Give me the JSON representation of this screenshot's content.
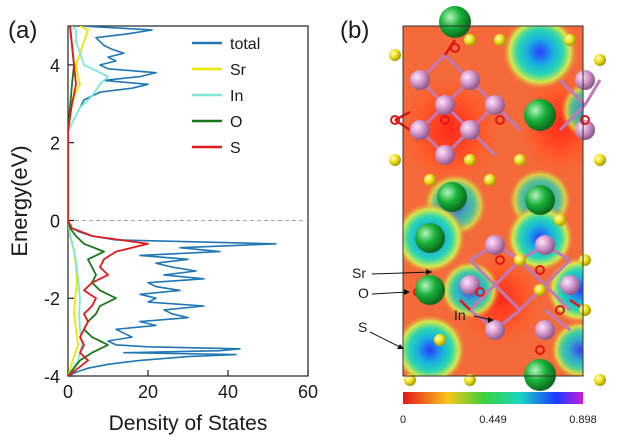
{
  "panels": {
    "a": {
      "label": "(a)"
    },
    "b": {
      "label": "(b)",
      "atom_labels": {
        "sr": "Sr",
        "o": "O",
        "in": "In",
        "s": "S"
      },
      "colorbar": {
        "ticks": [
          "0",
          "0.449",
          "0.898"
        ],
        "range": [
          0,
          0.898
        ]
      },
      "colors": {
        "sr_atom": "#19b23a",
        "in_atom": "#d69ad0",
        "s_atom": "#f2e21a",
        "o_atom": "#e01616",
        "map_background": "#f46a3a"
      }
    }
  },
  "chart_data": {
    "type": "line",
    "orientation": "horizontal-density",
    "xlabel": "Density of States",
    "ylabel": "Energy(eV)",
    "xlim": [
      0,
      60
    ],
    "ylim": [
      -4,
      5
    ],
    "xticks": [
      "0",
      "20",
      "40",
      "60"
    ],
    "yticks": [
      "-4",
      "-2",
      "0",
      "2",
      "4"
    ],
    "fermi_level": 0,
    "legend_placement": "top-right",
    "series": [
      {
        "name": "total",
        "color": "#1f77b4",
        "energy": [
          -4.0,
          -3.9,
          -3.8,
          -3.7,
          -3.6,
          -3.5,
          -3.45,
          -3.4,
          -3.35,
          -3.3,
          -3.25,
          -3.2,
          -3.1,
          -3.0,
          -2.9,
          -2.8,
          -2.7,
          -2.6,
          -2.5,
          -2.4,
          -2.3,
          -2.2,
          -2.1,
          -2.0,
          -1.9,
          -1.8,
          -1.7,
          -1.6,
          -1.5,
          -1.4,
          -1.3,
          -1.2,
          -1.1,
          -1.0,
          -0.9,
          -0.8,
          -0.7,
          -0.6,
          -0.5,
          -0.4,
          -0.3,
          -0.2,
          -0.1,
          0.0,
          2.3,
          2.5,
          2.7,
          2.9,
          3.1,
          3.3,
          3.4,
          3.5,
          3.6,
          3.7,
          3.8,
          3.9,
          4.0,
          4.1,
          4.2,
          4.3,
          4.4,
          4.5,
          4.6,
          4.7,
          4.8,
          4.9,
          5.0
        ],
        "values": [
          0,
          2,
          5,
          10,
          18,
          30,
          42,
          14,
          38,
          43,
          20,
          12,
          10,
          16,
          14,
          12,
          22,
          18,
          30,
          26,
          24,
          34,
          20,
          22,
          18,
          28,
          22,
          20,
          34,
          24,
          32,
          26,
          22,
          30,
          18,
          38,
          28,
          52,
          12,
          6,
          3,
          1,
          0.4,
          0,
          0,
          1,
          2,
          3,
          4,
          8,
          16,
          20,
          9,
          18,
          22,
          10,
          8,
          12,
          10,
          14,
          11,
          9,
          8,
          7,
          15,
          21,
          3
        ]
      },
      {
        "name": "Sr",
        "color": "#e8e800",
        "energy": [
          -4.0,
          -3.6,
          -3.2,
          -2.8,
          -2.4,
          -2.0,
          -1.6,
          -1.2,
          -0.8,
          -0.4,
          0.0,
          2.3,
          3.0,
          3.3,
          3.5,
          3.7,
          4.0,
          4.3,
          4.6,
          4.9,
          5.0
        ],
        "values": [
          0,
          1.2,
          2.5,
          2.0,
          1.5,
          1.8,
          2.2,
          2.0,
          1.5,
          0.5,
          0,
          0,
          1,
          2,
          3,
          2.5,
          2,
          3,
          4,
          5,
          3
        ]
      },
      {
        "name": "In",
        "color": "#7fe8d8",
        "energy": [
          -4.0,
          -3.6,
          -3.2,
          -2.8,
          -2.4,
          -2.0,
          -1.6,
          -1.2,
          -0.8,
          -0.4,
          0.0,
          2.3,
          2.9,
          3.2,
          3.5,
          3.7,
          4.0,
          4.3,
          4.6,
          4.9,
          5.0
        ],
        "values": [
          0,
          2.5,
          3.5,
          3.0,
          2.8,
          3.0,
          2.6,
          2.2,
          1.6,
          0.6,
          0,
          0,
          3,
          6,
          8,
          10,
          4,
          3,
          2,
          2,
          1
        ]
      },
      {
        "name": "O",
        "color": "#1a7a1a",
        "energy": [
          -4.0,
          -3.6,
          -3.4,
          -3.2,
          -3.0,
          -2.8,
          -2.6,
          -2.4,
          -2.2,
          -2.0,
          -1.8,
          -1.6,
          -1.4,
          -1.2,
          -1.0,
          -0.8,
          -0.6,
          -0.4,
          -0.2,
          0.0,
          2.3,
          3.5,
          4.0,
          4.5,
          5.0
        ],
        "values": [
          0,
          3,
          6,
          10,
          6,
          4,
          5,
          7,
          8,
          12,
          8,
          6,
          7,
          6,
          5,
          9,
          4,
          2,
          0.5,
          0,
          0,
          1,
          1.5,
          1,
          0.5
        ]
      },
      {
        "name": "S",
        "color": "#e41a1c",
        "energy": [
          -4.0,
          -3.6,
          -3.4,
          -3.2,
          -3.0,
          -2.8,
          -2.6,
          -2.4,
          -2.2,
          -2.0,
          -1.8,
          -1.6,
          -1.4,
          -1.2,
          -1.0,
          -0.8,
          -0.6,
          -0.4,
          -0.2,
          0.0,
          2.3,
          3.0,
          3.5,
          4.0,
          4.5,
          5.0
        ],
        "values": [
          0,
          5,
          3,
          4,
          3,
          4,
          5,
          4,
          6,
          7,
          4,
          6,
          10,
          8,
          9,
          12,
          20,
          6,
          1,
          0,
          0,
          1,
          2,
          1.5,
          1,
          0.5
        ]
      }
    ]
  }
}
